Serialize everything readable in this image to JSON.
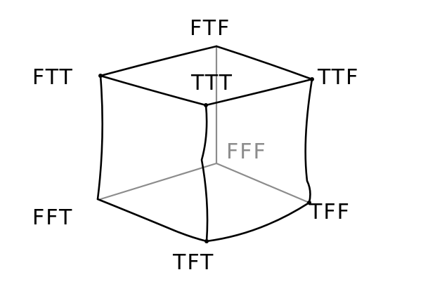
{
  "vertices": {
    "ftf": {
      "label": "FTF",
      "color": "#000000"
    },
    "ftt": {
      "label": "FTT",
      "color": "#000000"
    },
    "ttt": {
      "label": "TTT",
      "color": "#000000"
    },
    "ttf": {
      "label": "TTF",
      "color": "#000000"
    },
    "fff": {
      "label": "FFF",
      "color": "#8c8c8c"
    },
    "fft": {
      "label": "FFT",
      "color": "#000000"
    },
    "tff": {
      "label": "TFF",
      "color": "#000000"
    },
    "tft": {
      "label": "TFT",
      "color": "#000000"
    }
  }
}
